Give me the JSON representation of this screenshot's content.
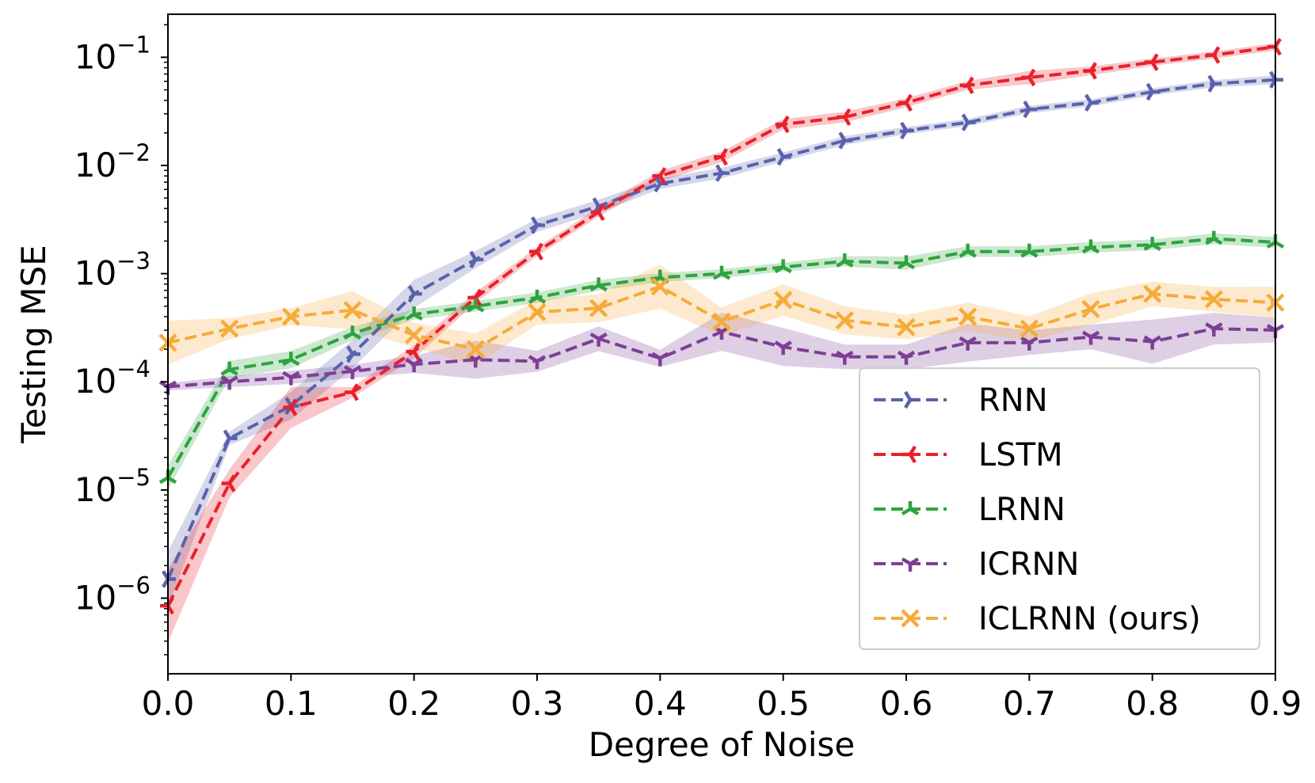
{
  "chart_data": {
    "type": "line",
    "title": "",
    "xlabel": "Degree of Noise",
    "ylabel": "Testing MSE",
    "yscale": "log",
    "xlim": [
      0.0,
      0.9
    ],
    "ylim": [
      2e-07,
      0.25
    ],
    "xticks": [
      "0.0",
      "0.1",
      "0.2",
      "0.3",
      "0.4",
      "0.5",
      "0.6",
      "0.7",
      "0.8",
      "0.9"
    ],
    "yticks": [
      {
        "base": "10",
        "exp": "−6",
        "value": 1e-06
      },
      {
        "base": "10",
        "exp": "−5",
        "value": 1e-05
      },
      {
        "base": "10",
        "exp": "−4",
        "value": 0.0001
      },
      {
        "base": "10",
        "exp": "−3",
        "value": 0.001
      },
      {
        "base": "10",
        "exp": "−2",
        "value": 0.01
      },
      {
        "base": "10",
        "exp": "−1",
        "value": 0.1
      }
    ],
    "x": [
      0.0,
      0.05,
      0.1,
      0.15,
      0.2,
      0.25,
      0.3,
      0.35,
      0.4,
      0.45,
      0.5,
      0.55,
      0.6,
      0.65,
      0.7,
      0.75,
      0.8,
      0.85,
      0.9
    ],
    "legend_location": "lower-right",
    "series": [
      {
        "name": "RNN",
        "color": "#5a62ad",
        "marker": "tri-right",
        "values": [
          1.5e-06,
          3e-05,
          6e-05,
          0.00018,
          0.00065,
          0.00135,
          0.0028,
          0.0042,
          0.0068,
          0.0085,
          0.012,
          0.017,
          0.021,
          0.025,
          0.033,
          0.038,
          0.048,
          0.057,
          0.062
        ],
        "band": [
          1.8,
          1.15,
          1.35,
          1.35,
          1.35,
          1.2,
          1.15,
          1.15,
          1.12,
          1.12,
          1.1,
          1.1,
          1.08,
          1.08,
          1.08,
          1.08,
          1.08,
          1.08,
          1.1
        ]
      },
      {
        "name": "LSTM",
        "color": "#e8212a",
        "marker": "tri-left",
        "values": [
          8.5e-07,
          1.15e-05,
          5.8e-05,
          8e-05,
          0.00019,
          0.0006,
          0.0016,
          0.0037,
          0.008,
          0.012,
          0.024,
          0.028,
          0.038,
          0.055,
          0.065,
          0.075,
          0.09,
          0.105,
          0.125
        ],
        "band": [
          2.2,
          1.35,
          1.55,
          1.12,
          1.15,
          1.12,
          1.1,
          1.1,
          1.12,
          1.12,
          1.12,
          1.12,
          1.1,
          1.1,
          1.15,
          1.1,
          1.08,
          1.08,
          1.08
        ]
      },
      {
        "name": "LRNN",
        "color": "#2fa33f",
        "marker": "tri-up",
        "values": [
          1.3e-05,
          0.00013,
          0.00016,
          0.00028,
          0.00042,
          0.0005,
          0.0006,
          0.00078,
          0.00092,
          0.001,
          0.00115,
          0.0013,
          0.00125,
          0.0016,
          0.0016,
          0.00175,
          0.00185,
          0.0021,
          0.00195
        ],
        "band": [
          1.3,
          1.2,
          1.2,
          1.15,
          1.12,
          1.12,
          1.12,
          1.12,
          1.1,
          1.1,
          1.1,
          1.12,
          1.15,
          1.12,
          1.12,
          1.12,
          1.12,
          1.12,
          1.12
        ]
      },
      {
        "name": "ICRNN",
        "color": "#7d3f96",
        "marker": "tri-down",
        "values": [
          9e-05,
          0.0001,
          0.00011,
          0.000125,
          0.000145,
          0.00016,
          0.000155,
          0.00025,
          0.000165,
          0.00029,
          0.00021,
          0.00017,
          0.00017,
          0.00023,
          0.00023,
          0.00026,
          0.000235,
          0.00031,
          0.0003
        ],
        "band": [
          1.08,
          1.12,
          1.15,
          1.15,
          1.2,
          1.5,
          1.25,
          1.3,
          1.2,
          1.5,
          1.5,
          1.3,
          1.3,
          1.5,
          1.3,
          1.3,
          1.6,
          1.4,
          1.3
        ]
      },
      {
        "name": "ICLRNN (ours)",
        "color": "#f6ab3a",
        "marker": "x",
        "values": [
          0.00023,
          0.00031,
          0.0004,
          0.00046,
          0.00027,
          0.0002,
          0.00044,
          0.00048,
          0.00076,
          0.00036,
          0.00057,
          0.00037,
          0.00032,
          0.0004,
          0.00031,
          0.00047,
          0.00065,
          0.00058,
          0.00054
        ],
        "band": [
          1.6,
          1.25,
          1.2,
          1.5,
          1.3,
          1.4,
          1.3,
          1.35,
          1.6,
          1.35,
          1.4,
          1.35,
          1.3,
          1.35,
          1.3,
          1.4,
          1.3,
          1.3,
          1.4
        ]
      }
    ]
  }
}
